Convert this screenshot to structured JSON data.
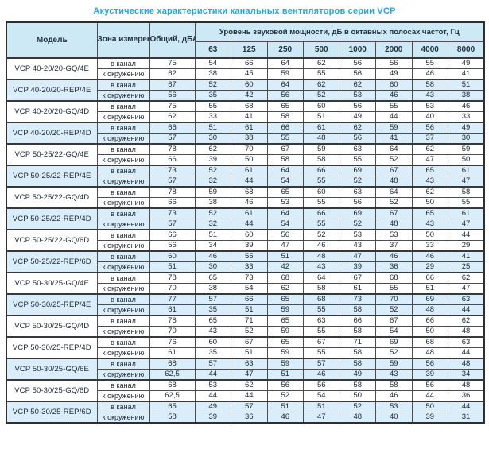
{
  "title": "Акустические характеристики канальных вентиляторов  серии VCP",
  "colors": {
    "title_text": "#2aa5da",
    "header_bg": "#cde9f6",
    "shaded_row_bg": "#d9eefa",
    "border": "#4d4d4d",
    "text": "#1e2832"
  },
  "table": {
    "headers": {
      "model": "Модель",
      "zone": "Зона измерения",
      "total": "Общий, дБА",
      "spl_group": "Уровень звуковой мощности, дБ в октавных полосах частот, Гц",
      "frequencies": [
        "63",
        "125",
        "250",
        "500",
        "1000",
        "2000",
        "4000",
        "8000"
      ]
    },
    "zone_labels": {
      "duct": "в канал",
      "ambient": "к окружению"
    },
    "rows": [
      {
        "model": "VCP 40-20/20-GQ/4E",
        "shaded": false,
        "duct": {
          "total": "75",
          "values": [
            "54",
            "66",
            "64",
            "62",
            "56",
            "56",
            "55",
            "49"
          ]
        },
        "ambient": {
          "total": "62",
          "values": [
            "38",
            "45",
            "59",
            "55",
            "56",
            "49",
            "46",
            "41"
          ]
        }
      },
      {
        "model": "VCP 40-20/20-REP/4E",
        "shaded": true,
        "duct": {
          "total": "67",
          "values": [
            "52",
            "60",
            "64",
            "62",
            "62",
            "60",
            "58",
            "51"
          ]
        },
        "ambient": {
          "total": "56",
          "values": [
            "35",
            "42",
            "56",
            "52",
            "53",
            "46",
            "43",
            "38"
          ]
        }
      },
      {
        "model": "VCP 40-20/20-GQ/4D",
        "shaded": false,
        "duct": {
          "total": "75",
          "values": [
            "55",
            "68",
            "65",
            "60",
            "56",
            "55",
            "53",
            "46"
          ]
        },
        "ambient": {
          "total": "62",
          "values": [
            "33",
            "41",
            "58",
            "51",
            "49",
            "44",
            "40",
            "33"
          ]
        }
      },
      {
        "model": "VCP 40-20/20-REP/4D",
        "shaded": true,
        "duct": {
          "total": "66",
          "values": [
            "51",
            "61",
            "66",
            "61",
            "62",
            "59",
            "56",
            "49"
          ]
        },
        "ambient": {
          "total": "57",
          "values": [
            "30",
            "38",
            "55",
            "48",
            "56",
            "41",
            "37",
            "30"
          ]
        }
      },
      {
        "model": "VCP 50-25/22-GQ/4E",
        "shaded": false,
        "duct": {
          "total": "78",
          "values": [
            "62",
            "70",
            "67",
            "59",
            "63",
            "64",
            "62",
            "59"
          ]
        },
        "ambient": {
          "total": "66",
          "values": [
            "39",
            "50",
            "58",
            "58",
            "55",
            "52",
            "47",
            "50"
          ]
        }
      },
      {
        "model": "VCP 50-25/22-REP/4E",
        "shaded": true,
        "duct": {
          "total": "73",
          "values": [
            "52",
            "61",
            "64",
            "66",
            "69",
            "67",
            "65",
            "61"
          ]
        },
        "ambient": {
          "total": "57",
          "values": [
            "32",
            "44",
            "54",
            "55",
            "52",
            "48",
            "43",
            "47"
          ]
        }
      },
      {
        "model": "VCP 50-25/22-GQ/4D",
        "shaded": false,
        "duct": {
          "total": "78",
          "values": [
            "59",
            "68",
            "65",
            "60",
            "63",
            "64",
            "62",
            "58"
          ]
        },
        "ambient": {
          "total": "66",
          "values": [
            "38",
            "46",
            "53",
            "55",
            "56",
            "52",
            "50",
            "55"
          ]
        }
      },
      {
        "model": "VCP 50-25/22-REP/4D",
        "shaded": true,
        "duct": {
          "total": "73",
          "values": [
            "52",
            "61",
            "64",
            "66",
            "69",
            "67",
            "65",
            "61"
          ]
        },
        "ambient": {
          "total": "57",
          "values": [
            "32",
            "44",
            "54",
            "55",
            "52",
            "48",
            "43",
            "47"
          ]
        }
      },
      {
        "model": "VCP 50-25/22-GQ/6D",
        "shaded": false,
        "duct": {
          "total": "66",
          "values": [
            "51",
            "60",
            "56",
            "52",
            "53",
            "53",
            "50",
            "44"
          ]
        },
        "ambient": {
          "total": "56",
          "values": [
            "34",
            "39",
            "47",
            "46",
            "43",
            "37",
            "33",
            "29"
          ]
        }
      },
      {
        "model": "VCP 50-25/22-REP/6D",
        "shaded": true,
        "duct": {
          "total": "60",
          "values": [
            "46",
            "55",
            "51",
            "48",
            "47",
            "46",
            "46",
            "41"
          ]
        },
        "ambient": {
          "total": "51",
          "values": [
            "30",
            "33",
            "42",
            "43",
            "39",
            "36",
            "29",
            "25"
          ]
        }
      },
      {
        "model": "VCP 50-30/25-GQ/4E",
        "shaded": false,
        "duct": {
          "total": "78",
          "values": [
            "65",
            "73",
            "68",
            "64",
            "67",
            "68",
            "66",
            "62"
          ]
        },
        "ambient": {
          "total": "70",
          "values": [
            "38",
            "54",
            "62",
            "58",
            "61",
            "55",
            "51",
            "47"
          ]
        }
      },
      {
        "model": "VCP 50-30/25-REP/4E",
        "shaded": true,
        "duct": {
          "total": "77",
          "values": [
            "57",
            "66",
            "65",
            "68",
            "73",
            "70",
            "69",
            "63"
          ]
        },
        "ambient": {
          "total": "61",
          "values": [
            "35",
            "51",
            "59",
            "55",
            "58",
            "52",
            "48",
            "44"
          ]
        }
      },
      {
        "model": "VCP 50-30/25-GQ/4D",
        "shaded": false,
        "duct": {
          "total": "78",
          "values": [
            "65",
            "71",
            "65",
            "63",
            "66",
            "67",
            "66",
            "62"
          ]
        },
        "ambient": {
          "total": "70",
          "values": [
            "43",
            "52",
            "59",
            "55",
            "58",
            "54",
            "50",
            "48"
          ]
        }
      },
      {
        "model": "VCP 50-30/25-REP/4D",
        "shaded": false,
        "duct": {
          "total": "76",
          "values": [
            "60",
            "67",
            "65",
            "67",
            "71",
            "69",
            "68",
            "63"
          ]
        },
        "ambient": {
          "total": "61",
          "values": [
            "35",
            "51",
            "59",
            "55",
            "58",
            "52",
            "48",
            "44"
          ]
        }
      },
      {
        "model": "VCP 50-30/25-GQ/6E",
        "shaded": true,
        "duct": {
          "total": "68",
          "values": [
            "57",
            "63",
            "59",
            "57",
            "58",
            "59",
            "56",
            "48"
          ]
        },
        "ambient": {
          "total": "62,5",
          "values": [
            "44",
            "47",
            "51",
            "46",
            "49",
            "43",
            "39",
            "34"
          ]
        }
      },
      {
        "model": "VCP 50-30/25-GQ/6D",
        "shaded": false,
        "duct": {
          "total": "68",
          "values": [
            "53",
            "62",
            "56",
            "56",
            "58",
            "58",
            "56",
            "48"
          ]
        },
        "ambient": {
          "total": "62,5",
          "values": [
            "44",
            "44",
            "52",
            "54",
            "50",
            "46",
            "44",
            "36"
          ]
        }
      },
      {
        "model": "VCP 50-30/25-REP/6D",
        "shaded": true,
        "duct": {
          "total": "65",
          "values": [
            "49",
            "57",
            "51",
            "51",
            "52",
            "53",
            "50",
            "44"
          ]
        },
        "ambient": {
          "total": "58",
          "values": [
            "39",
            "36",
            "46",
            "47",
            "48",
            "40",
            "39",
            "31"
          ]
        }
      }
    ]
  }
}
